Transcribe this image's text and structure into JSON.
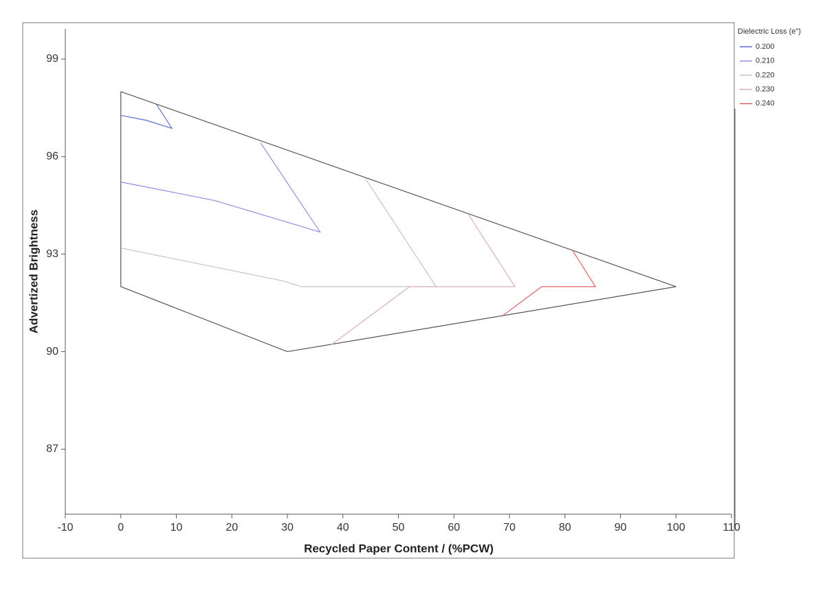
{
  "chart_data": {
    "type": "line",
    "x_label": "Recycled Paper Content / (%PCW)",
    "y_label": "Advertized Brightness",
    "legend_title": "Dielectric Loss (e\")",
    "legend_position": "right",
    "xlim": [
      -10,
      110
    ],
    "xticks": [
      -10,
      0,
      10,
      20,
      30,
      40,
      50,
      60,
      70,
      80,
      90,
      100,
      110
    ],
    "ylim": [
      85,
      100
    ],
    "yticks": [
      87,
      90,
      93,
      96,
      99
    ],
    "boundary": {
      "color": "#555555",
      "x": [
        0,
        100,
        30,
        0,
        0
      ],
      "values": [
        98,
        92,
        90,
        92,
        98
      ]
    },
    "series": [
      {
        "name": "0.200",
        "color": "#5a6fd6",
        "x": [
          0,
          4.5,
          9.2,
          6.4
        ],
        "values": [
          97.27,
          97.12,
          96.87,
          97.61
        ]
      },
      {
        "name": "0.210",
        "color": "#8f8fe0",
        "x": [
          0,
          16.9,
          35.9,
          25.2
        ],
        "values": [
          95.22,
          94.65,
          93.68,
          96.42
        ]
      },
      {
        "name": "0.220",
        "color": "#c4c4c4",
        "x": [
          0,
          29.1,
          32.5,
          56.8,
          44
        ],
        "values": [
          93.19,
          92.18,
          92,
          92,
          95.34
        ]
      },
      {
        "name": "0.230",
        "color": "#d9b2b2",
        "x": [
          37.9,
          52,
          71,
          62.5
        ],
        "values": [
          90.21,
          92,
          92,
          94.25
        ]
      },
      {
        "name": "0.240",
        "color": "#e06464",
        "x": [
          68.8,
          75.8,
          85.5,
          81.3
        ],
        "values": [
          91.11,
          92,
          92,
          93.13
        ]
      }
    ]
  }
}
